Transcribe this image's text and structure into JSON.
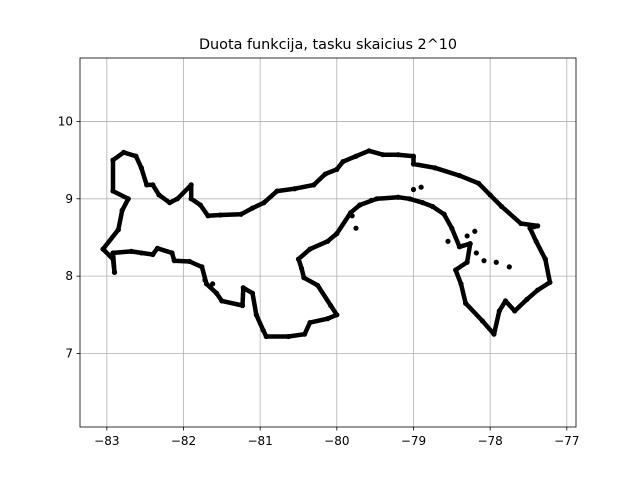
{
  "chart_data": {
    "type": "scatter",
    "title": "Duota funkcija, tasku skaicius 2^10",
    "xlabel": "",
    "ylabel": "",
    "xlim": [
      -83.35,
      -76.88
    ],
    "ylim": [
      6.05,
      10.82
    ],
    "xticks": [
      -83,
      -82,
      -81,
      -80,
      -79,
      -78,
      -77
    ],
    "yticks": [
      7,
      8,
      9,
      10
    ],
    "grid": true,
    "marker_color": "#000000",
    "series": [
      {
        "points": [
          [
            -82.9,
            8.05
          ],
          [
            -82.92,
            8.3
          ],
          [
            -82.68,
            8.32
          ],
          [
            -82.55,
            8.3
          ],
          [
            -82.4,
            8.28
          ],
          [
            -82.34,
            8.36
          ],
          [
            -82.15,
            8.3
          ],
          [
            -82.12,
            8.2
          ],
          [
            -81.92,
            8.19
          ],
          [
            -81.76,
            8.12
          ],
          [
            -81.7,
            7.9
          ],
          [
            -81.57,
            7.78
          ],
          [
            -81.5,
            7.68
          ],
          [
            -81.23,
            7.62
          ],
          [
            -81.22,
            7.85
          ],
          [
            -81.1,
            7.78
          ],
          [
            -81.05,
            7.5
          ],
          [
            -80.96,
            7.3
          ],
          [
            -80.92,
            7.22
          ],
          [
            -80.63,
            7.22
          ],
          [
            -80.42,
            7.25
          ],
          [
            -80.35,
            7.4
          ],
          [
            -80.12,
            7.45
          ],
          [
            -80.0,
            7.5
          ],
          [
            -80.08,
            7.62
          ],
          [
            -80.25,
            7.88
          ],
          [
            -80.43,
            7.98
          ],
          [
            -80.46,
            8.1
          ],
          [
            -80.5,
            8.22
          ],
          [
            -80.35,
            8.35
          ],
          [
            -80.12,
            8.45
          ],
          [
            -80.0,
            8.55
          ],
          [
            -79.82,
            8.82
          ],
          [
            -79.7,
            8.92
          ],
          [
            -79.48,
            9.0
          ],
          [
            -79.2,
            9.02
          ],
          [
            -79.05,
            9.0
          ],
          [
            -78.88,
            8.95
          ],
          [
            -78.75,
            8.9
          ],
          [
            -78.6,
            8.8
          ],
          [
            -78.5,
            8.62
          ],
          [
            -78.4,
            8.38
          ],
          [
            -78.26,
            8.42
          ],
          [
            -78.3,
            8.18
          ],
          [
            -78.45,
            8.08
          ],
          [
            -78.38,
            7.9
          ],
          [
            -78.32,
            7.65
          ],
          [
            -78.1,
            7.42
          ],
          [
            -77.95,
            7.25
          ],
          [
            -77.88,
            7.55
          ],
          [
            -77.8,
            7.68
          ],
          [
            -77.68,
            7.55
          ],
          [
            -77.52,
            7.7
          ],
          [
            -77.38,
            7.82
          ],
          [
            -77.22,
            7.92
          ],
          [
            -77.28,
            8.22
          ],
          [
            -77.4,
            8.45
          ],
          [
            -77.48,
            8.62
          ],
          [
            -77.38,
            8.65
          ],
          [
            -77.6,
            8.68
          ],
          [
            -77.85,
            8.9
          ],
          [
            -78.0,
            9.05
          ],
          [
            -78.15,
            9.2
          ],
          [
            -78.4,
            9.3
          ],
          [
            -78.72,
            9.4
          ],
          [
            -79.0,
            9.45
          ],
          [
            -79.0,
            9.55
          ],
          [
            -79.2,
            9.57
          ],
          [
            -79.4,
            9.57
          ],
          [
            -79.58,
            9.62
          ],
          [
            -79.75,
            9.55
          ],
          [
            -79.92,
            9.48
          ],
          [
            -80.0,
            9.38
          ],
          [
            -80.15,
            9.32
          ],
          [
            -80.3,
            9.18
          ],
          [
            -80.55,
            9.13
          ],
          [
            -80.78,
            9.1
          ],
          [
            -80.95,
            8.95
          ],
          [
            -81.1,
            8.88
          ],
          [
            -81.25,
            8.8
          ],
          [
            -81.52,
            8.79
          ],
          [
            -81.68,
            8.78
          ],
          [
            -81.78,
            8.92
          ],
          [
            -81.9,
            9.0
          ],
          [
            -81.9,
            9.18
          ],
          [
            -82.08,
            9.0
          ],
          [
            -82.18,
            8.95
          ],
          [
            -82.32,
            9.05
          ],
          [
            -82.4,
            9.18
          ],
          [
            -82.48,
            9.18
          ],
          [
            -82.55,
            9.4
          ],
          [
            -82.62,
            9.55
          ],
          [
            -82.78,
            9.6
          ],
          [
            -82.92,
            9.5
          ],
          [
            -82.92,
            9.1
          ],
          [
            -82.72,
            9.0
          ],
          [
            -82.8,
            8.85
          ],
          [
            -82.85,
            8.6
          ],
          [
            -83.05,
            8.35
          ],
          [
            -82.92,
            8.22
          ],
          [
            -82.9,
            8.05
          ]
        ],
        "extra_points": [
          [
            -79.0,
            9.12
          ],
          [
            -78.9,
            9.15
          ],
          [
            -78.18,
            8.3
          ],
          [
            -78.08,
            8.2
          ],
          [
            -77.92,
            8.18
          ],
          [
            -77.75,
            8.12
          ],
          [
            -78.2,
            8.58
          ],
          [
            -78.3,
            8.52
          ],
          [
            -78.55,
            8.45
          ],
          [
            -79.75,
            8.62
          ],
          [
            -79.8,
            8.78
          ],
          [
            -79.55,
            8.98
          ],
          [
            -81.62,
            7.9
          ],
          [
            -81.72,
            7.95
          ]
        ]
      }
    ]
  }
}
